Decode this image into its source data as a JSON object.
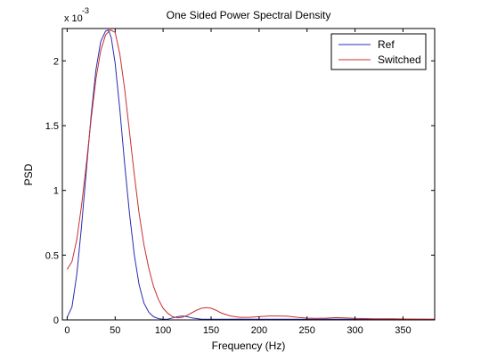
{
  "chart_data": {
    "type": "line",
    "title": "One Sided Power Spectral Density",
    "xlabel": "Frequency (Hz)",
    "ylabel": "PSD",
    "y_exponent_label": "x 10",
    "y_exponent_power": "-3",
    "xlim": [
      -5,
      383
    ],
    "ylim": [
      0,
      2.25
    ],
    "x_ticks": [
      0,
      50,
      100,
      150,
      200,
      250,
      300,
      350
    ],
    "y_ticks": [
      0,
      0.5,
      1,
      1.5,
      2
    ],
    "y_tick_labels": [
      "0",
      "0.5",
      "1",
      "1.5",
      "2"
    ],
    "x_tick_labels": [
      "0",
      "50",
      "100",
      "150",
      "200",
      "250",
      "300",
      "350"
    ],
    "grid": false,
    "legend_position": "top-right",
    "series": [
      {
        "name": "Ref",
        "color": "#2b2bb0",
        "x": [
          0,
          5,
          10,
          15,
          20,
          25,
          30,
          35,
          40,
          43,
          46,
          50,
          55,
          60,
          65,
          70,
          75,
          80,
          85,
          90,
          95,
          100,
          105,
          110,
          115,
          120,
          125,
          130,
          140,
          150,
          160,
          180,
          200,
          220,
          250,
          280,
          300,
          330,
          360,
          383
        ],
        "y": [
          0.02,
          0.1,
          0.35,
          0.72,
          1.15,
          1.58,
          1.93,
          2.15,
          2.23,
          2.24,
          2.18,
          1.98,
          1.62,
          1.2,
          0.82,
          0.5,
          0.27,
          0.13,
          0.06,
          0.025,
          0.01,
          0.004,
          0.006,
          0.015,
          0.025,
          0.03,
          0.025,
          0.015,
          0.005,
          0.005,
          0.005,
          0.006,
          0.005,
          0.005,
          0.005,
          0.006,
          0.005,
          0.005,
          0.005,
          0.004
        ]
      },
      {
        "name": "Switched",
        "color": "#c83030",
        "x": [
          0,
          5,
          10,
          15,
          20,
          25,
          30,
          35,
          40,
          45,
          50,
          55,
          60,
          65,
          70,
          75,
          80,
          85,
          90,
          95,
          100,
          105,
          110,
          115,
          120,
          125,
          130,
          135,
          140,
          145,
          150,
          155,
          160,
          170,
          180,
          190,
          200,
          210,
          220,
          230,
          240,
          250,
          260,
          270,
          280,
          290,
          300,
          320,
          340,
          360,
          383
        ],
        "y": [
          0.39,
          0.45,
          0.62,
          0.88,
          1.2,
          1.55,
          1.86,
          2.08,
          2.2,
          2.24,
          2.22,
          2.05,
          1.78,
          1.45,
          1.12,
          0.82,
          0.58,
          0.4,
          0.26,
          0.16,
          0.09,
          0.05,
          0.025,
          0.015,
          0.02,
          0.035,
          0.055,
          0.075,
          0.09,
          0.095,
          0.09,
          0.075,
          0.055,
          0.03,
          0.02,
          0.02,
          0.025,
          0.03,
          0.03,
          0.028,
          0.02,
          0.014,
          0.012,
          0.014,
          0.018,
          0.016,
          0.012,
          0.008,
          0.008,
          0.006,
          0.005
        ]
      }
    ]
  }
}
